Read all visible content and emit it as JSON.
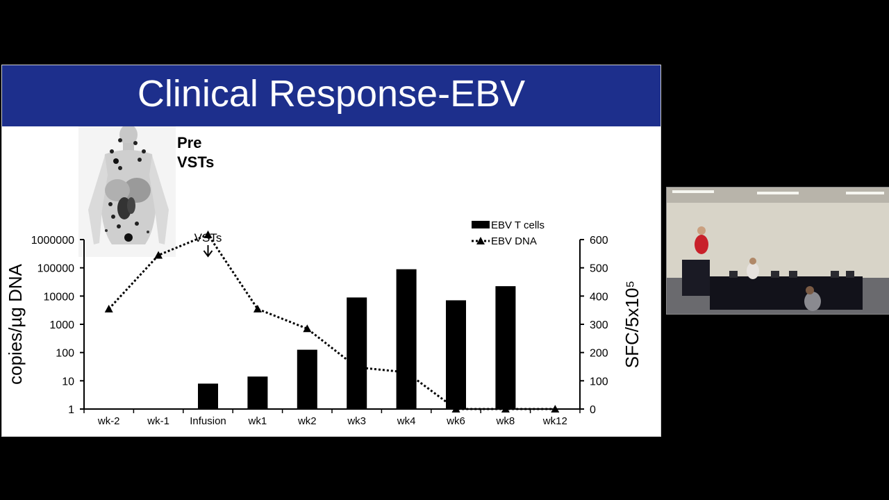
{
  "slide": {
    "title": "Clinical Response-EBV",
    "pet_caption": [
      "Pre",
      "VSTs"
    ]
  },
  "chart_data": {
    "type": "bar",
    "categories": [
      "wk-2",
      "wk-1",
      "Infusion",
      "wk1",
      "wk2",
      "wk3",
      "wk4",
      "wk6",
      "wk8",
      "wk12"
    ],
    "series": [
      {
        "name": "EBV T cells",
        "type": "bar",
        "axis": "right",
        "values": [
          0,
          0,
          90,
          115,
          210,
          395,
          495,
          385,
          435,
          0
        ]
      },
      {
        "name": "EBV DNA",
        "type": "line",
        "style": "dotted",
        "marker": "triangle",
        "axis": "left",
        "values": [
          3500,
          280000,
          1500000,
          3500,
          700,
          30,
          20,
          1,
          1,
          1
        ]
      }
    ],
    "ylabel": "copies/µg DNA",
    "y2label": "SFC/5x10⁵",
    "y_ticks": [
      "1",
      "10",
      "100",
      "1000",
      "10000",
      "100000",
      "1000000"
    ],
    "y2_ticks": [
      "0",
      "100",
      "200",
      "300",
      "400",
      "500",
      "600"
    ],
    "ylim": [
      1,
      1000000
    ],
    "y2lim": [
      0,
      600
    ],
    "yscale": "log",
    "legend_position": "top-right",
    "annotation": {
      "text": "VSTs",
      "category": "Infusion"
    }
  },
  "colors": {
    "title_bar": "#1d2f8c",
    "bars": "#000000",
    "background": "#000000"
  }
}
